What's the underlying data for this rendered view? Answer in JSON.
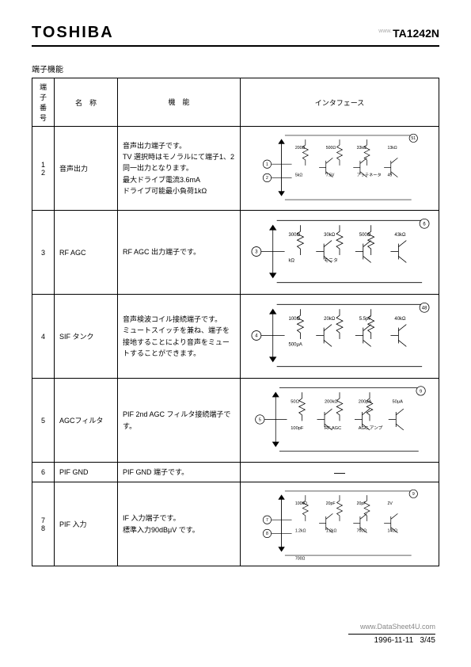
{
  "header": {
    "brand": "TOSHIBA",
    "partno": "TA1242N",
    "watermark_top": "www.",
    "watermark_bottom": "www.DataSheet4U.com"
  },
  "section_title": "端子機能",
  "table": {
    "headers": {
      "num": "端子番号",
      "name": "名　称",
      "func": "機　能",
      "iface": "インタフェース"
    },
    "rows": [
      {
        "num": "1\n2",
        "name": "音声出力",
        "func": "音声出力端子です。\nTV 選択時はモノラルにて端子1、2 同一出力となります。\n最大ドライブ電流3.6mA\nドライブ可能最小負荷1kΩ",
        "schematic": {
          "height": 110,
          "labels": [
            "200Ω",
            "500Ω",
            "33kΩ",
            "13kΩ",
            "5kΩ",
            "7.5V",
            "アッテネータ",
            "49",
            "51"
          ],
          "pins": [
            "1",
            "2"
          ]
        }
      },
      {
        "num": "3",
        "name": "RF AGC",
        "func": "RF AGC 出力端子です。",
        "schematic": {
          "height": 95,
          "labels": [
            "300Ω",
            "30kΩ",
            "500Ω",
            "43kΩ",
            "kΩ",
            "モニタ",
            "6"
          ],
          "pins": [
            "3"
          ]
        }
      },
      {
        "num": "4",
        "name": "SIF タンク",
        "func": "音声検波コイル接続端子です。\nミュートスイッチを兼ね、端子を接地することにより音声をミュートすることができます。",
        "schematic": {
          "height": 95,
          "labels": [
            "100Ω",
            "20kΩ",
            "5.5pF",
            "40kΩ",
            "500μA",
            "48"
          ],
          "pins": [
            "4"
          ]
        }
      },
      {
        "num": "5",
        "name": "AGCフィルタ",
        "func": "PIF 2nd AGC フィルタ接続端子です。",
        "schematic": {
          "height": 100,
          "labels": [
            "50Ω",
            "200kΩ",
            "200μA",
            "50μA",
            "100pF",
            "RF AGC",
            "AGC アンプ",
            "9"
          ],
          "pins": [
            "5"
          ]
        }
      },
      {
        "num": "6",
        "name": "PIF GND",
        "func": "PIF GND 端子です。",
        "schematic": {
          "dash": true
        }
      },
      {
        "num": "7\n8",
        "name": "PIF 入力",
        "func": "IF 入力端子です。\n標準入力90dBμV です。",
        "schematic": {
          "height": 110,
          "labels": [
            "100kΩ",
            "20pF",
            "20pF",
            "2V",
            "1.2kΩ",
            "1.2kΩ",
            "700Ω",
            "140Ω",
            "700Ω",
            "9"
          ],
          "pins": [
            "7",
            "8"
          ]
        }
      }
    ]
  },
  "footer": {
    "date": "1996-11-11",
    "page": "3/45"
  },
  "style": {
    "stroke": "#000000",
    "stroke_width": 0.8,
    "bg": "#ffffff"
  }
}
